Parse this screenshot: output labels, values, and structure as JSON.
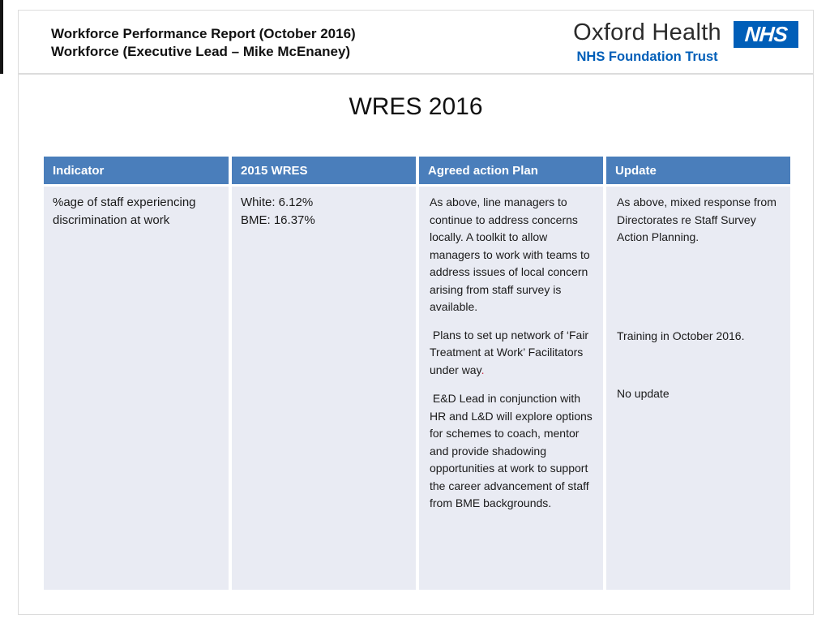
{
  "page": {
    "report_title": {
      "line1": "Workforce Performance Report (October 2016)",
      "line2": "Workforce (Executive Lead – Mike McEnaney)"
    },
    "logo": {
      "org": "Oxford Health",
      "nhs": "NHS",
      "trust": "NHS Foundation Trust",
      "nhs_blue": "#005EB8"
    },
    "slide_title": "WRES 2016"
  },
  "table": {
    "header_bg": "#4A7EBB",
    "cell_bg": "#E9EBF3",
    "accent_red": "#C8304A",
    "columns": [
      "Indicator",
      "2015 WRES",
      "Agreed action Plan",
      "Update"
    ],
    "row": {
      "indicator": "%age of staff experiencing discrimination at work",
      "wres": {
        "line1": "White: 6.12%",
        "line2": "BME: 16.37%"
      },
      "action": {
        "p1": "As above, line managers to continue to address concerns locally. A toolkit to allow managers to work with teams to address issues of local concern arising from staff survey is available.",
        "p2": " Plans to set up network of ‘Fair Treatment at Work’ Facilitators under way",
        "p2_period": ".",
        "p3": " E&D Lead in conjunction with HR and L&D will explore options for schemes to coach, mentor and provide shadowing opportunities at work to support the career advancement of staff from BME backgrounds."
      },
      "update": {
        "p1": "As above, mixed response from Directorates re Staff Survey Action Planning.",
        "p2": "Training in October 2016.",
        "p3": "No update"
      }
    }
  }
}
